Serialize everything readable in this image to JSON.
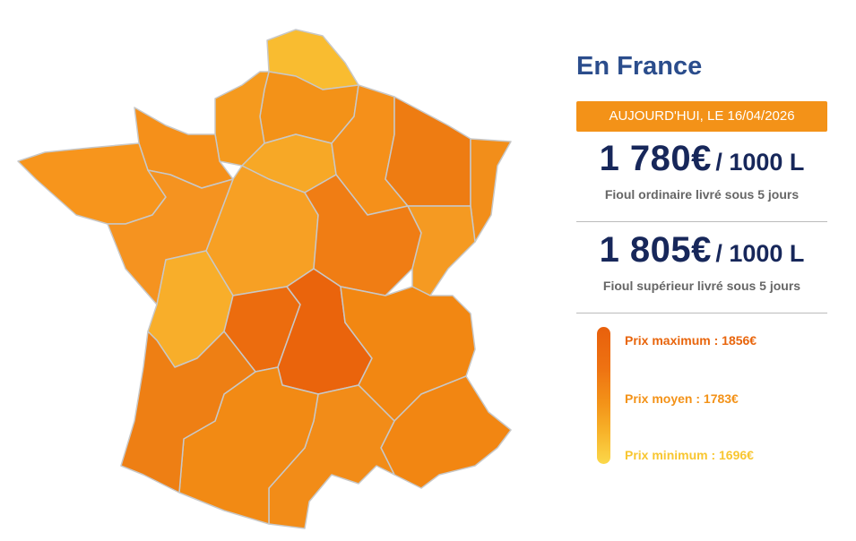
{
  "title": "En France",
  "date_banner": "AUJOURD'HUI, LE 16/04/2026",
  "prices": [
    {
      "amount": "1 780€",
      "unit": "/ 1000 L",
      "description": "Fioul ordinaire livré sous 5 jours"
    },
    {
      "amount": "1 805€",
      "unit": "/ 1000 L",
      "description": "Fioul supérieur livré sous 5 jours"
    }
  ],
  "legend": [
    "Prix maximum : 1856€",
    "Prix moyen : 1783€",
    "Prix minimum : 1696€"
  ]
}
